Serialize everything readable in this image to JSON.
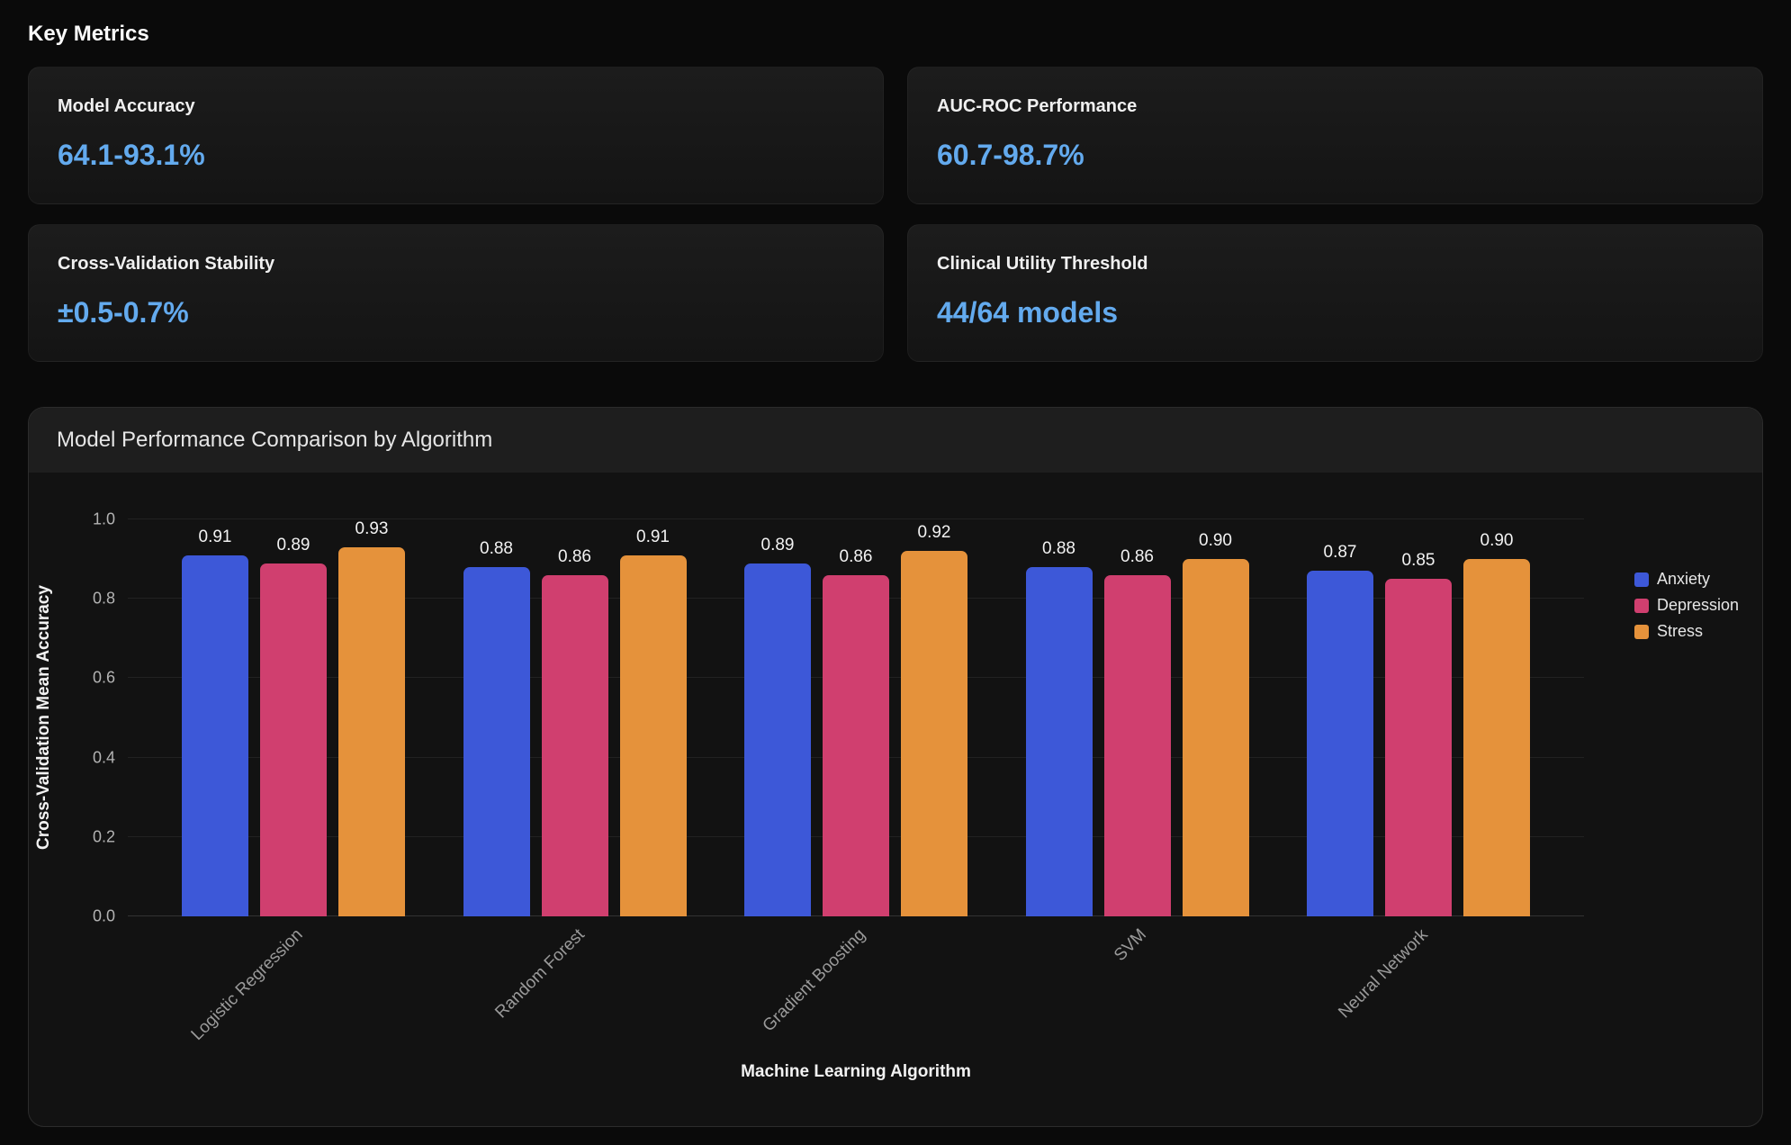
{
  "page": {
    "title": "Key Metrics"
  },
  "accent_color": "#63aaee",
  "metrics": [
    {
      "label": "Model Accuracy",
      "value": "64.1-93.1%"
    },
    {
      "label": "AUC-ROC Performance",
      "value": "60.7-98.7%"
    },
    {
      "label": "Cross-Validation Stability",
      "value": "±0.5-0.7%"
    },
    {
      "label": "Clinical Utility Threshold",
      "value": "44/64 models"
    }
  ],
  "chart_data": {
    "type": "bar",
    "title": "Model Performance Comparison by Algorithm",
    "categories": [
      "Logistic Regression",
      "Random Forest",
      "Gradient Boosting",
      "SVM",
      "Neural Network"
    ],
    "series": [
      {
        "name": "Anxiety",
        "color": "#3d58d8",
        "values": [
          0.91,
          0.88,
          0.89,
          0.88,
          0.87
        ]
      },
      {
        "name": "Depression",
        "color": "#d03f6f",
        "values": [
          0.89,
          0.86,
          0.86,
          0.86,
          0.85
        ]
      },
      {
        "name": "Stress",
        "color": "#e5923b",
        "values": [
          0.93,
          0.91,
          0.92,
          0.9,
          0.9
        ]
      }
    ],
    "xlabel": "Machine Learning Algorithm",
    "ylabel": "Cross-Validation Mean Accuracy",
    "ylim": [
      0,
      1.0
    ],
    "yticks": [
      0.0,
      0.2,
      0.4,
      0.6,
      0.8,
      1.0
    ],
    "grid": true,
    "legend_position": "top-right",
    "value_labels": true
  }
}
